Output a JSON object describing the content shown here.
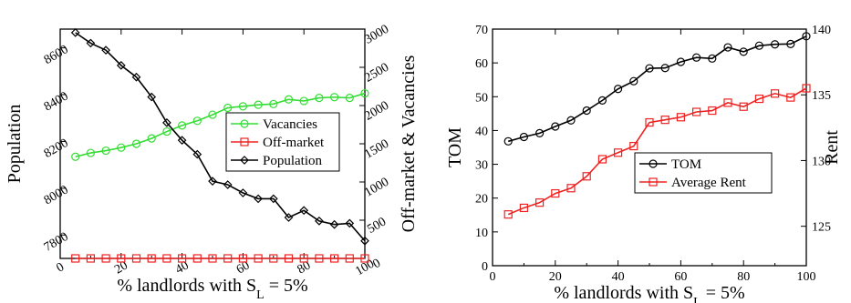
{
  "chart_data": [
    {
      "type": "line",
      "xlabel_main": "% landlords with S",
      "xlabel_sub": "L",
      "xlabel_tail": " = 5%",
      "ylabel_left": "Population",
      "ylabel_right": "Off-market & Vacancies",
      "xlim": [
        0,
        100
      ],
      "ylim_left": [
        7700,
        8680
      ],
      "ylim_right": [
        0,
        3000
      ],
      "x_ticks": [
        0,
        20,
        40,
        60,
        80,
        100
      ],
      "y_ticks_left": [
        7800,
        8000,
        8200,
        8400,
        8600
      ],
      "y_ticks_right": [
        0,
        500,
        1000,
        1500,
        2000,
        2500,
        3000
      ],
      "x_ticks_labels": [
        "0",
        "20",
        "40",
        "60",
        "80",
        "100"
      ],
      "y_ticks_left_labels": [
        "7800",
        "8000",
        "8200",
        "8400",
        "8600"
      ],
      "y_ticks_right_labels": [
        "0",
        "500",
        "1000",
        "1500",
        "2000",
        "2500",
        "3000"
      ],
      "legend_position": "center-right",
      "x": [
        5,
        10,
        15,
        20,
        25,
        30,
        35,
        40,
        45,
        50,
        55,
        60,
        65,
        70,
        75,
        80,
        85,
        90,
        95,
        100
      ],
      "series": [
        {
          "name": "Vacancies",
          "axis": "right",
          "color": "#33dd33",
          "marker": "circle",
          "values": [
            1330,
            1380,
            1410,
            1450,
            1500,
            1570,
            1660,
            1740,
            1800,
            1880,
            1970,
            1990,
            2010,
            2020,
            2080,
            2060,
            2100,
            2110,
            2100,
            2160
          ]
        },
        {
          "name": "Off-market",
          "axis": "right",
          "color": "#ee2222",
          "marker": "square",
          "values": [
            0,
            0,
            0,
            0,
            0,
            0,
            0,
            0,
            0,
            0,
            0,
            0,
            0,
            0,
            0,
            0,
            0,
            0,
            0,
            0
          ]
        },
        {
          "name": "Population",
          "axis": "left",
          "color": "#000000",
          "marker": "diamond",
          "values": [
            8665,
            8620,
            8590,
            8525,
            8475,
            8390,
            8280,
            8205,
            8145,
            8030,
            8015,
            7980,
            7955,
            7955,
            7875,
            7905,
            7860,
            7845,
            7850,
            7775
          ]
        }
      ]
    },
    {
      "type": "line",
      "xlabel_main": "% landlords with S",
      "xlabel_sub": "L",
      "xlabel_tail": " = 5%",
      "ylabel_left": "TOM",
      "ylabel_right": "Rent",
      "xlim": [
        0,
        100
      ],
      "ylim_left": [
        0,
        70
      ],
      "ylim_right": [
        122,
        140
      ],
      "x_ticks": [
        0,
        20,
        40,
        60,
        80,
        100
      ],
      "y_ticks_left": [
        0,
        10,
        20,
        30,
        40,
        50,
        60,
        70
      ],
      "y_ticks_right": [
        125,
        130,
        135,
        140
      ],
      "x_ticks_labels": [
        "0",
        "20",
        "40",
        "60",
        "80",
        "100"
      ],
      "y_ticks_left_labels": [
        "0",
        "10",
        "20",
        "30",
        "40",
        "50",
        "60",
        "70"
      ],
      "y_ticks_right_labels": [
        "125",
        "130",
        "135",
        "140"
      ],
      "legend_position": "center-right",
      "x": [
        5,
        10,
        15,
        20,
        25,
        30,
        35,
        40,
        45,
        50,
        55,
        60,
        65,
        70,
        75,
        80,
        85,
        90,
        95,
        100
      ],
      "series": [
        {
          "name": "TOM",
          "axis": "left",
          "color": "#000000",
          "marker": "circle",
          "values": [
            36.8,
            38.1,
            39.2,
            41.2,
            43.0,
            45.9,
            48.9,
            52.3,
            54.6,
            58.4,
            58.5,
            60.3,
            61.6,
            61.3,
            64.6,
            63.3,
            65.1,
            65.5,
            65.6,
            67.9
          ]
        },
        {
          "name": "Average Rent",
          "axis": "right",
          "color": "#ee2222",
          "marker": "square",
          "values": [
            125.9,
            126.4,
            126.8,
            127.5,
            127.9,
            128.8,
            130.1,
            130.6,
            131.1,
            132.9,
            133.1,
            133.3,
            133.7,
            133.8,
            134.4,
            134.1,
            134.7,
            135.1,
            134.8,
            135.5
          ]
        }
      ]
    }
  ]
}
